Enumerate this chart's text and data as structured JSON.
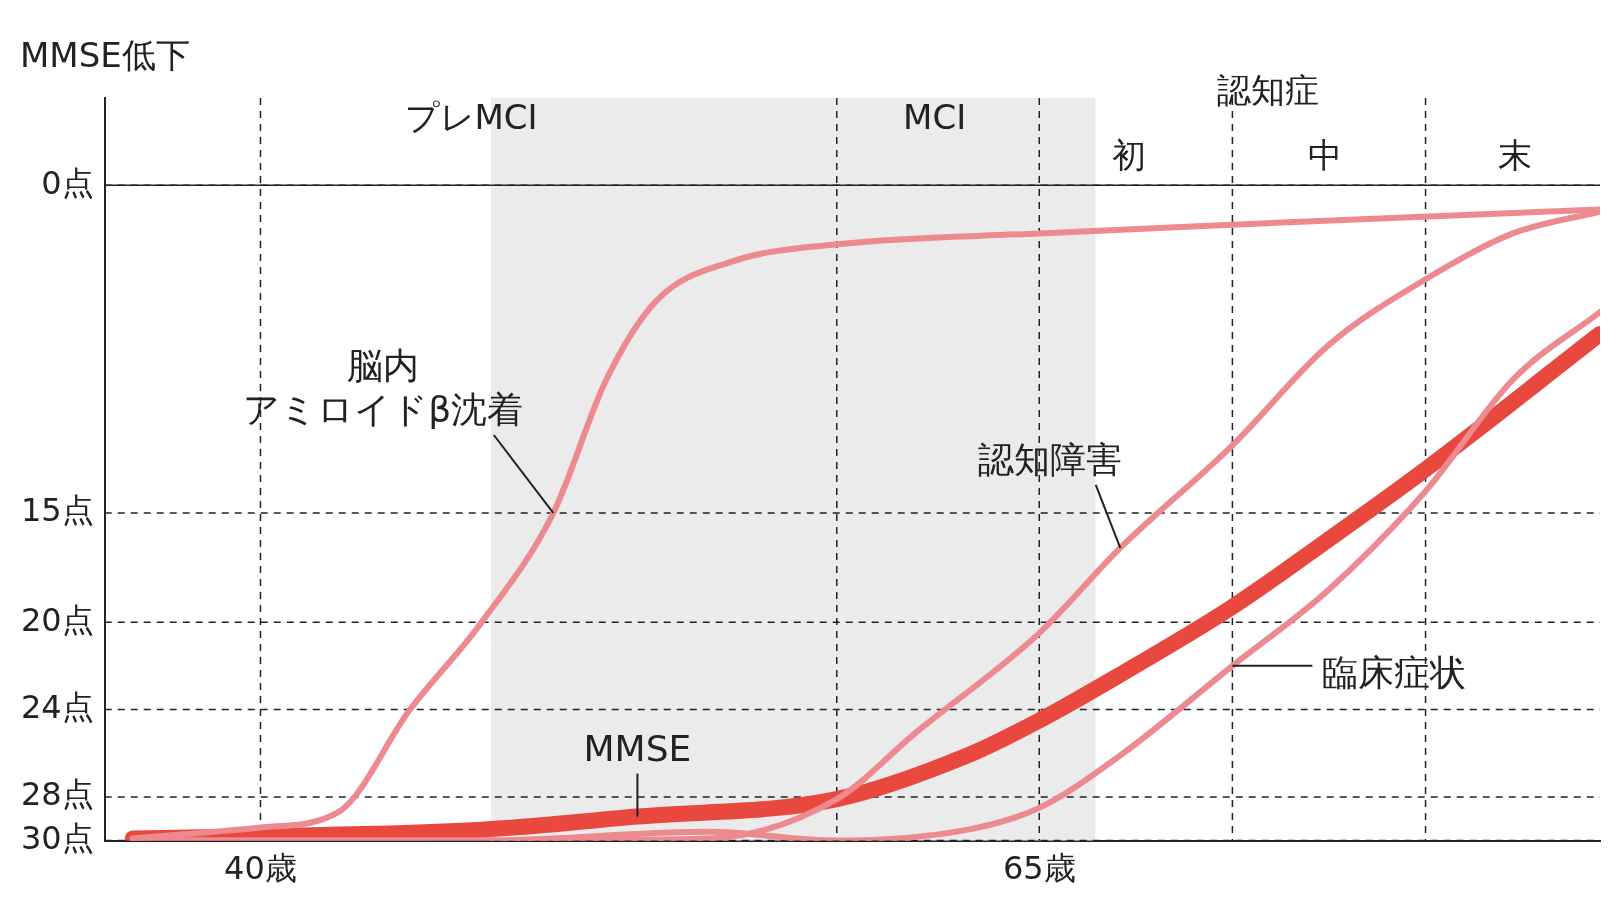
{
  "chart_data": {
    "type": "line",
    "ylabel": "MMSE低下",
    "xlim": [
      35,
      83
    ],
    "xticks": [
      {
        "value": 40,
        "label": "40歳"
      },
      {
        "value": 65,
        "label": "65歳"
      }
    ],
    "ylim": [
      30,
      -4
    ],
    "yticks": [
      {
        "value": 0,
        "label": "0点"
      },
      {
        "value": 15,
        "label": "15点"
      },
      {
        "value": 20,
        "label": "20点"
      },
      {
        "value": 24,
        "label": "24点"
      },
      {
        "value": 28,
        "label": "28点"
      },
      {
        "value": 30,
        "label": "30点"
      }
    ],
    "grid": true,
    "legend": false,
    "marker": "none",
    "annotations": [
      "プレMCI",
      "MCI",
      "認知症",
      "初",
      "中",
      "末"
    ],
    "series": [
      {
        "name": "脳内アミロイドβ沈着",
        "color": "#ec8a90",
        "x": [
          35.9,
          40,
          42.5,
          44.8,
          47.1,
          49.4,
          51.1,
          52.7,
          55.1,
          58.5,
          65,
          71.2,
          83
        ],
        "values": [
          29.9,
          29.4,
          28.7,
          24,
          20,
          15,
          8.9,
          5.3,
          3.5,
          2.7,
          2.2,
          1.8,
          1.1
        ]
      },
      {
        "name": "認知障害",
        "color": "#ec8a90",
        "x": [
          35.9,
          47.1,
          54.4,
          58.5,
          61,
          65,
          67.6,
          71.2,
          74.3,
          77.4,
          80.2,
          83
        ],
        "values": [
          30,
          30,
          29.9,
          28.1,
          25.1,
          20.5,
          16.6,
          11.9,
          7.3,
          4.3,
          2.2,
          1.2
        ]
      },
      {
        "name": "臨床症状",
        "color": "#ec8a90",
        "x": [
          35.9,
          47.1,
          54.4,
          58.5,
          62.7,
          65,
          67.6,
          71.2,
          74.3,
          77.4,
          80.2,
          83
        ],
        "values": [
          30,
          30,
          29.6,
          30,
          29.5,
          28.5,
          26.1,
          22,
          18.5,
          14,
          8.9,
          5.8
        ]
      },
      {
        "name": "MMSE",
        "color": "#e8483e",
        "x": [
          35.9,
          40,
          47.1,
          52.1,
          58.5,
          62.7,
          65,
          67.6,
          71.2,
          74.3,
          77.4,
          83
        ],
        "values": [
          29.9,
          29.8,
          29.5,
          28.9,
          28.1,
          26.1,
          24.5,
          22.4,
          19.3,
          16.2,
          13,
          6.8
        ]
      }
    ],
    "ref_lines": [
      {
        "axis": "y",
        "value": 0,
        "line_style": "solid"
      },
      {
        "axis": "x",
        "value": 58.5,
        "line_style": "dashed"
      },
      {
        "axis": "x",
        "value": 71.2,
        "line_style": "dashed"
      },
      {
        "axis": "x",
        "value": 77.4,
        "line_style": "dashed"
      }
    ],
    "bands": [
      {
        "axis": "x",
        "from": 47.4,
        "to": 66.8,
        "color": "#ebebeb"
      }
    ]
  }
}
